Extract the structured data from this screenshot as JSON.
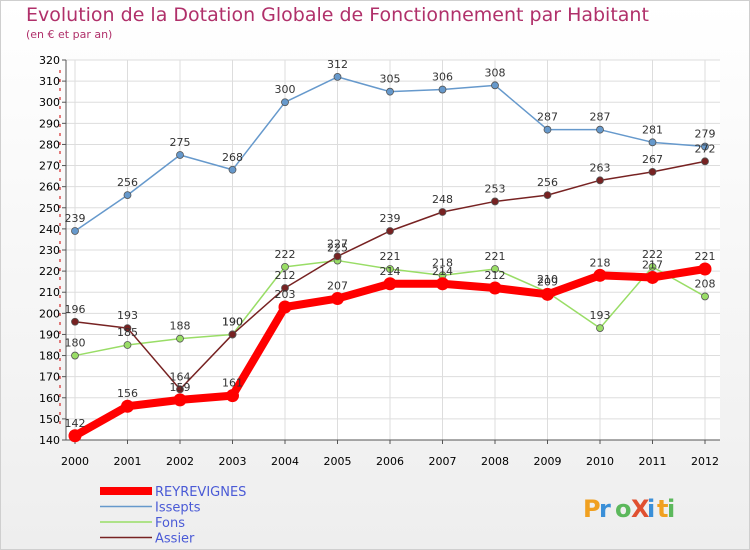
{
  "chart_data": {
    "type": "line",
    "title": "Evolution de la Dotation Globale de Fonctionnement par Habitant",
    "subtitle": "(en € et par an)",
    "xlabel": "",
    "ylabel": "",
    "x": [
      "2000",
      "2001",
      "2002",
      "2003",
      "2004",
      "2005",
      "2006",
      "2007",
      "2008",
      "2009",
      "2010",
      "2011",
      "2012"
    ],
    "ylim": [
      140,
      320
    ],
    "yticks": [
      140,
      150,
      160,
      170,
      180,
      190,
      200,
      210,
      220,
      230,
      240,
      250,
      260,
      270,
      280,
      290,
      300,
      310,
      320
    ],
    "grid": true,
    "legend_position": "bottom-left",
    "series": [
      {
        "name": "REYREVIGNES",
        "color": "#ff0000",
        "values": [
          142,
          156,
          159,
          161,
          203,
          207,
          214,
          214,
          212,
          209,
          218,
          217,
          221
        ]
      },
      {
        "name": "Issepts",
        "color": "#6699cc",
        "values": [
          239,
          256,
          275,
          268,
          300,
          312,
          305,
          306,
          308,
          287,
          287,
          281,
          279
        ]
      },
      {
        "name": "Fons",
        "color": "#99dd66",
        "values": [
          180,
          185,
          188,
          190,
          222,
          225,
          221,
          218,
          221,
          210,
          193,
          222,
          208
        ]
      },
      {
        "name": "Assier",
        "color": "#772222",
        "values": [
          196,
          193,
          164,
          190,
          212,
          227,
          239,
          248,
          253,
          256,
          263,
          267,
          272
        ]
      }
    ],
    "label_overrides": {
      "REYREVIGNES": {
        "1": 156,
        "2": 159,
        "3": 161,
        "4": 203
      }
    }
  },
  "brand": {
    "text": "ProXiti"
  }
}
